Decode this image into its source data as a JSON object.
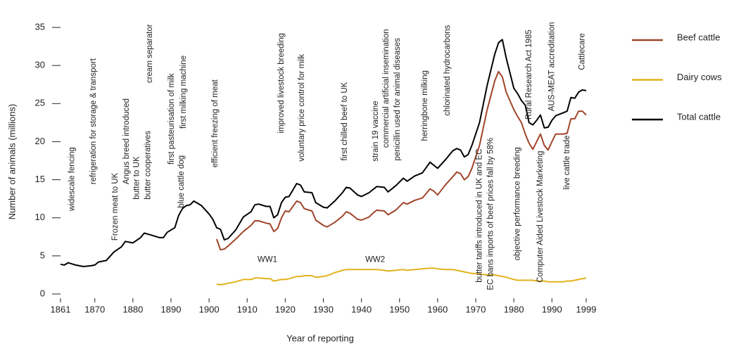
{
  "chart_data": {
    "type": "line",
    "xlabel": "Year of reporting",
    "ylabel": "Number of animals (millions)",
    "x": [
      1861,
      1862,
      1863,
      1865,
      1867,
      1869,
      1870,
      1871,
      1873,
      1875,
      1877,
      1878,
      1880,
      1882,
      1883,
      1885,
      1887,
      1888,
      1889,
      1891,
      1892,
      1893,
      1894,
      1895,
      1896,
      1898,
      1900,
      1901,
      1902,
      1903,
      1904,
      1905,
      1907,
      1909,
      1911,
      1912,
      1913,
      1915,
      1916,
      1917,
      1918,
      1919,
      1920,
      1921,
      1923,
      1924,
      1925,
      1927,
      1928,
      1930,
      1931,
      1933,
      1935,
      1936,
      1937,
      1939,
      1940,
      1942,
      1943,
      1944,
      1946,
      1947,
      1949,
      1951,
      1952,
      1954,
      1956,
      1958,
      1959,
      1960,
      1962,
      1964,
      1965,
      1966,
      1967,
      1968,
      1969,
      1971,
      1973,
      1975,
      1976,
      1977,
      1978,
      1980,
      1981,
      1982,
      1983,
      1984,
      1985,
      1986,
      1987,
      1988,
      1989,
      1990,
      1991,
      1993,
      1994,
      1995,
      1996,
      1997,
      1998,
      1999
    ],
    "series": [
      {
        "name": "Beef cattle",
        "color": "#a0442a",
        "values": [
          null,
          null,
          null,
          null,
          null,
          null,
          null,
          null,
          null,
          null,
          null,
          null,
          null,
          null,
          null,
          null,
          null,
          null,
          null,
          null,
          null,
          null,
          null,
          null,
          null,
          null,
          null,
          null,
          7.2,
          5.8,
          5.9,
          6.3,
          7.2,
          8.2,
          9.0,
          9.6,
          9.6,
          9.3,
          9.2,
          8.2,
          8.6,
          10.0,
          10.9,
          10.8,
          12.2,
          12.0,
          11.2,
          10.9,
          9.7,
          9.0,
          8.8,
          9.4,
          10.2,
          10.8,
          10.6,
          9.8,
          9.7,
          10.1,
          10.6,
          11.0,
          10.9,
          10.4,
          11.0,
          12.0,
          11.8,
          12.3,
          12.6,
          13.8,
          13.5,
          13.0,
          14.3,
          15.4,
          16.0,
          15.8,
          15.0,
          15.4,
          16.5,
          19.5,
          24.2,
          28.0,
          29.2,
          28.5,
          26.5,
          24.2,
          23.3,
          22.5,
          21.0,
          19.8,
          19.0,
          20.0,
          21.0,
          19.5,
          18.9,
          20.0,
          21.0,
          21.0,
          21.1,
          23.0,
          23.0,
          24.0,
          24.0,
          23.5
        ]
      },
      {
        "name": "Dairy cows",
        "color": "#e2b21c",
        "values": [
          null,
          null,
          null,
          null,
          null,
          null,
          null,
          null,
          null,
          null,
          null,
          null,
          null,
          null,
          null,
          null,
          null,
          null,
          null,
          null,
          null,
          null,
          null,
          null,
          null,
          null,
          null,
          null,
          1.3,
          1.2,
          1.3,
          1.4,
          1.6,
          1.9,
          1.9,
          2.1,
          2.1,
          2.0,
          2.0,
          1.7,
          1.8,
          1.9,
          1.9,
          2.0,
          2.3,
          2.3,
          2.4,
          2.4,
          2.2,
          2.3,
          2.4,
          2.8,
          3.1,
          3.2,
          3.2,
          3.2,
          3.2,
          3.2,
          3.2,
          3.2,
          3.1,
          3.0,
          3.1,
          3.2,
          3.1,
          3.2,
          3.3,
          3.4,
          3.4,
          3.3,
          3.2,
          3.2,
          3.1,
          3.0,
          2.9,
          2.8,
          2.7,
          2.6,
          2.5,
          2.5,
          2.4,
          2.3,
          2.2,
          1.9,
          1.8,
          1.8,
          1.8,
          1.8,
          1.8,
          1.7,
          1.7,
          1.7,
          1.6,
          1.6,
          1.6,
          1.6,
          1.7,
          1.7,
          1.8,
          1.9,
          2.0,
          2.1
        ]
      },
      {
        "name": "Total cattle",
        "color": "#000000",
        "values": [
          3.9,
          3.8,
          4.1,
          3.8,
          3.6,
          3.7,
          3.8,
          4.2,
          4.4,
          5.5,
          6.2,
          6.9,
          6.7,
          7.4,
          8.0,
          7.7,
          7.4,
          7.4,
          8.1,
          8.7,
          10.3,
          11.2,
          11.6,
          11.7,
          12.2,
          11.6,
          10.5,
          9.8,
          8.7,
          8.5,
          7.1,
          7.3,
          8.4,
          10.1,
          10.8,
          11.7,
          11.8,
          11.5,
          11.5,
          10.0,
          10.4,
          12.0,
          12.7,
          12.8,
          14.5,
          14.3,
          13.4,
          13.3,
          12.0,
          11.4,
          11.3,
          12.2,
          13.3,
          14.0,
          13.9,
          13.0,
          12.8,
          13.3,
          13.7,
          14.1,
          14.0,
          13.4,
          14.2,
          15.2,
          14.8,
          15.5,
          15.9,
          17.3,
          16.9,
          16.5,
          17.6,
          18.8,
          19.1,
          18.9,
          18.0,
          18.3,
          19.5,
          22.5,
          27.4,
          31.5,
          33.0,
          33.4,
          31.0,
          27.0,
          26.3,
          25.4,
          24.8,
          22.5,
          22.2,
          22.8,
          23.5,
          21.8,
          21.9,
          22.8,
          23.4,
          23.8,
          24.0,
          25.8,
          25.7,
          26.5,
          26.8,
          26.7
        ]
      }
    ],
    "xlim": [
      1861,
      1999
    ],
    "xticks": [
      1861,
      1870,
      1880,
      1890,
      1900,
      1910,
      1920,
      1930,
      1940,
      1950,
      1960,
      1970,
      1980,
      1990,
      1999
    ],
    "ylim": [
      0,
      35
    ],
    "yticks": [
      0,
      5,
      10,
      15,
      20,
      25,
      30,
      35
    ],
    "legend": "right",
    "annotations": [
      {
        "text": "widescale fencing",
        "x": 1864,
        "y": 10.9
      },
      {
        "text": "refrigeration for storage & transport",
        "x": 1869.7,
        "y": 14.4
      },
      {
        "text": "Frozen meat to UK",
        "x": 1875.4,
        "y": 7.0
      },
      {
        "text": "Angus breed introduced",
        "x": 1878.4,
        "y": 14.4
      },
      {
        "text": "butter to UK",
        "x": 1881,
        "y": 12.4
      },
      {
        "text": "butter cooperatives",
        "x": 1884,
        "y": 12.4
      },
      {
        "text": "cream separator",
        "x": 1884.5,
        "y": 27.7
      },
      {
        "text": "first pasteurisation of milk",
        "x": 1890.2,
        "y": 17
      },
      {
        "text": "blue cattle dog",
        "x": 1892.8,
        "y": 11.3
      },
      {
        "text": "first milking machine",
        "x": 1893.3,
        "y": 21.7
      },
      {
        "text": "efficient freezing of meat",
        "x": 1901.6,
        "y": 16.6
      },
      {
        "text": "improved livestock breeding",
        "x": 1919,
        "y": 21.1
      },
      {
        "text": "voluntary price control for milk",
        "x": 1924.4,
        "y": 17.4
      },
      {
        "text": "first chilled beef to UK",
        "x": 1935.6,
        "y": 17.5
      },
      {
        "text": "strain 19 vaccine",
        "x": 1943.8,
        "y": 17.4
      },
      {
        "text": "commercial artificial insemination",
        "x": 1946.5,
        "y": 19.2
      },
      {
        "text": "penicillin used for animal diseases",
        "x": 1949.5,
        "y": 17.5
      },
      {
        "text": "herringbone milking",
        "x": 1956.7,
        "y": 20.1
      },
      {
        "text": "chlorinated hydrocarbons",
        "x": 1962.6,
        "y": 23.4
      },
      {
        "text": "butter tariffs introduced in UK and EC",
        "x": 1971,
        "y": 1.5
      },
      {
        "text": "EC bans imports of beef prices fall by 58%",
        "x": 1974,
        "y": 0.5
      },
      {
        "text": "objective performance breeding",
        "x": 1981,
        "y": 4.4
      },
      {
        "text": "Rural Research Act 1985",
        "x": 1984,
        "y": 22.9
      },
      {
        "text": "Computer Aided Livestock Marketing",
        "x": 1987,
        "y": 1.5
      },
      {
        "text": "AUS-MEAT accreditation",
        "x": 1990,
        "y": 24
      },
      {
        "text": "live cattle trade",
        "x": 1994,
        "y": 13.7
      },
      {
        "text": "Cattlecare",
        "x": 1998,
        "y": 29.4
      }
    ],
    "labels": [
      {
        "text": "WW1",
        "x": 1915.3,
        "y": 4.5
      },
      {
        "text": "WW2",
        "x": 1943.6,
        "y": 4.5
      }
    ]
  }
}
